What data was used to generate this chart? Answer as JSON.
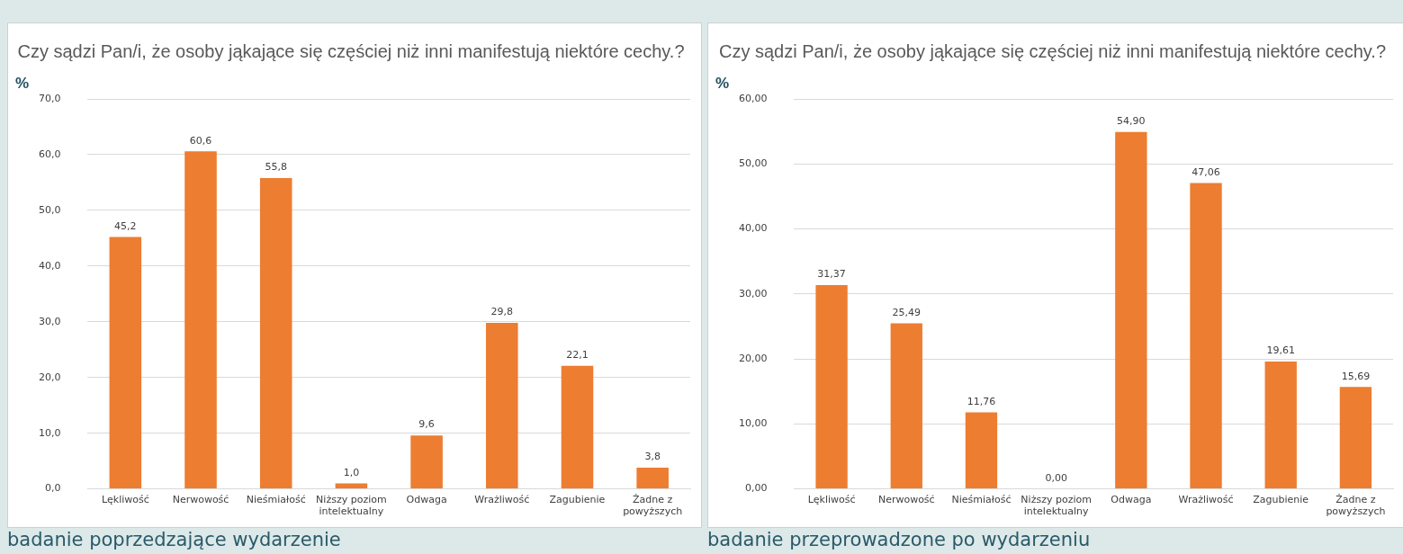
{
  "chart_data": [
    {
      "type": "bar",
      "title": "Czy sądzi Pan/i, że osoby jąkające się częściej niż inni manifestują niektóre cechy.?",
      "ylabel": "%",
      "categories": [
        "Lękliwość",
        "Nerwowość",
        "Nieśmiałość",
        "Niższy poziom intelektualny",
        "Odwaga",
        "Wrażliwość",
        "Zagubienie",
        "Żadne z powyższych"
      ],
      "values": [
        45.2,
        60.6,
        55.8,
        1.0,
        9.6,
        29.8,
        22.1,
        3.8
      ],
      "value_labels": [
        "45,2",
        "60,6",
        "55,8",
        "1,0",
        "9,6",
        "29,8",
        "22,1",
        "3,8"
      ],
      "color": "#ed7d31",
      "ylim": [
        0,
        70
      ],
      "yticks": [
        {
          "value": 0,
          "label": "0,0"
        },
        {
          "value": 10,
          "label": "10,0"
        },
        {
          "value": 20,
          "label": "20,0"
        },
        {
          "value": 30,
          "label": "30,0"
        },
        {
          "value": 40,
          "label": "40,0"
        },
        {
          "value": 50,
          "label": "50,0"
        },
        {
          "value": 60,
          "label": "60,0"
        },
        {
          "value": 70,
          "label": "70,0"
        }
      ],
      "grid": "y",
      "legend": false,
      "annotations": [
        "badanie poprzedzające wydarzenie"
      ]
    },
    {
      "type": "bar",
      "title": "Czy sądzi Pan/i, że osoby jąkające się częściej niż inni manifestują niektóre cechy.?",
      "ylabel": "%",
      "categories": [
        "Lękliwość",
        "Nerwowość",
        "Nieśmiałość",
        "Niższy poziom intelektualny",
        "Odwaga",
        "Wrażliwość",
        "Zagubienie",
        "Żadne z powyższych"
      ],
      "values": [
        31.37,
        25.49,
        11.76,
        0.0,
        54.9,
        47.06,
        19.61,
        15.69
      ],
      "value_labels": [
        "31,37",
        "25,49",
        "11,76",
        "0,00",
        "54,90",
        "47,06",
        "19,61",
        "15,69"
      ],
      "color": "#ed7d31",
      "ylim": [
        0,
        60
      ],
      "yticks": [
        {
          "value": 0,
          "label": "0,00"
        },
        {
          "value": 10,
          "label": "10,00"
        },
        {
          "value": 20,
          "label": "20,00"
        },
        {
          "value": 30,
          "label": "30,00"
        },
        {
          "value": 40,
          "label": "40,00"
        },
        {
          "value": 50,
          "label": "50,00"
        },
        {
          "value": 60,
          "label": "60,00"
        }
      ],
      "grid": "y",
      "legend": false,
      "annotations": [
        "badanie przeprowadzone po wydarzeniu"
      ]
    }
  ]
}
